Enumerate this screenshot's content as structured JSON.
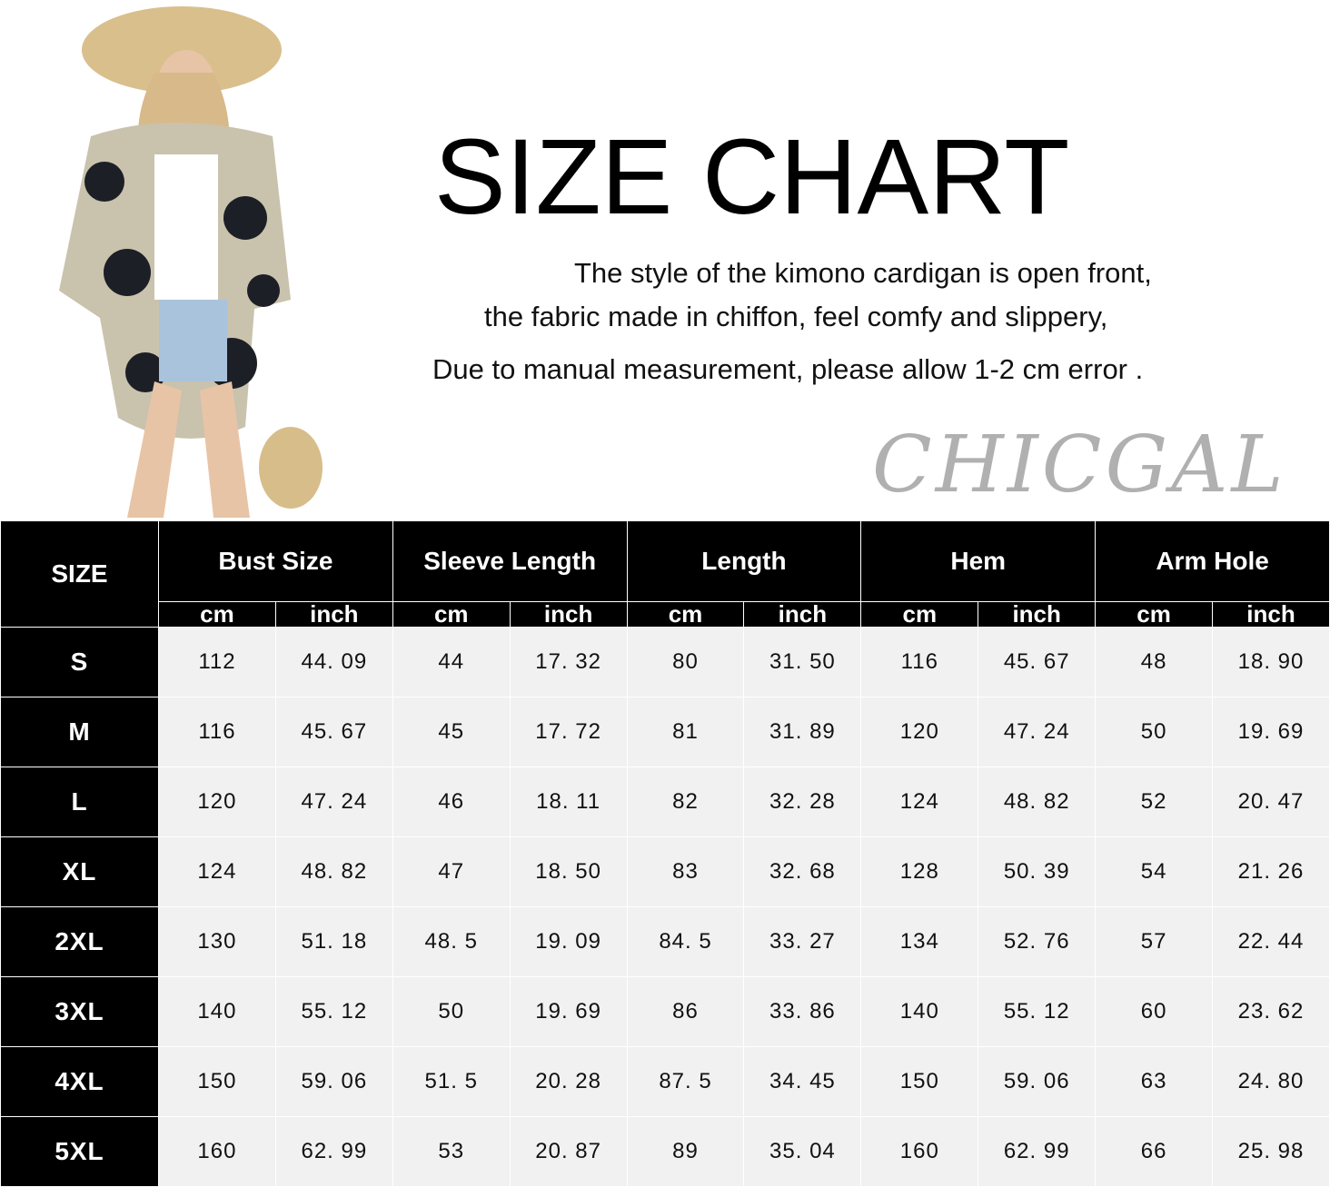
{
  "title": "SIZE CHART",
  "description": [
    "The style of the kimono cardigan is open front,",
    "the fabric made in chiffon, feel comfy and slippery,",
    "Due to manual measurement, please allow 1-2 cm error  ."
  ],
  "table": {
    "size_header": "SIZE",
    "groups": [
      "Bust Size",
      "Sleeve Length",
      "Length",
      "Hem",
      "Arm Hole"
    ],
    "units": [
      "cm",
      "inch"
    ],
    "rows": [
      {
        "size": "S",
        "values": [
          "112",
          "44. 09",
          "44",
          "17. 32",
          "80",
          "31. 50",
          "116",
          "45. 67",
          "48",
          "18. 90"
        ]
      },
      {
        "size": "M",
        "values": [
          "116",
          "45. 67",
          "45",
          "17. 72",
          "81",
          "31. 89",
          "120",
          "47. 24",
          "50",
          "19. 69"
        ]
      },
      {
        "size": "L",
        "values": [
          "120",
          "47. 24",
          "46",
          "18. 11",
          "82",
          "32. 28",
          "124",
          "48. 82",
          "52",
          "20. 47"
        ]
      },
      {
        "size": "XL",
        "values": [
          "124",
          "48. 82",
          "47",
          "18. 50",
          "83",
          "32. 68",
          "128",
          "50. 39",
          "54",
          "21. 26"
        ]
      },
      {
        "size": "2XL",
        "values": [
          "130",
          "51. 18",
          "48. 5",
          "19. 09",
          "84. 5",
          "33. 27",
          "134",
          "52. 76",
          "57",
          "22. 44"
        ]
      },
      {
        "size": "3XL",
        "values": [
          "140",
          "55. 12",
          "50",
          "19. 69",
          "86",
          "33. 86",
          "140",
          "55. 12",
          "60",
          "23. 62"
        ]
      },
      {
        "size": "4XL",
        "values": [
          "150",
          "59. 06",
          "51. 5",
          "20. 28",
          "87. 5",
          "34. 45",
          "150",
          "59. 06",
          "63",
          "24. 80"
        ]
      },
      {
        "size": "5XL",
        "values": [
          "160",
          "62. 99",
          "53",
          "20. 87",
          "89",
          "35. 04",
          "160",
          "62. 99",
          "66",
          "25. 98"
        ]
      }
    ]
  },
  "watermark": "CHICGAL",
  "colors": {
    "header_bg": "#000000",
    "cell_bg": "#f1f1f1",
    "text": "#111111"
  }
}
